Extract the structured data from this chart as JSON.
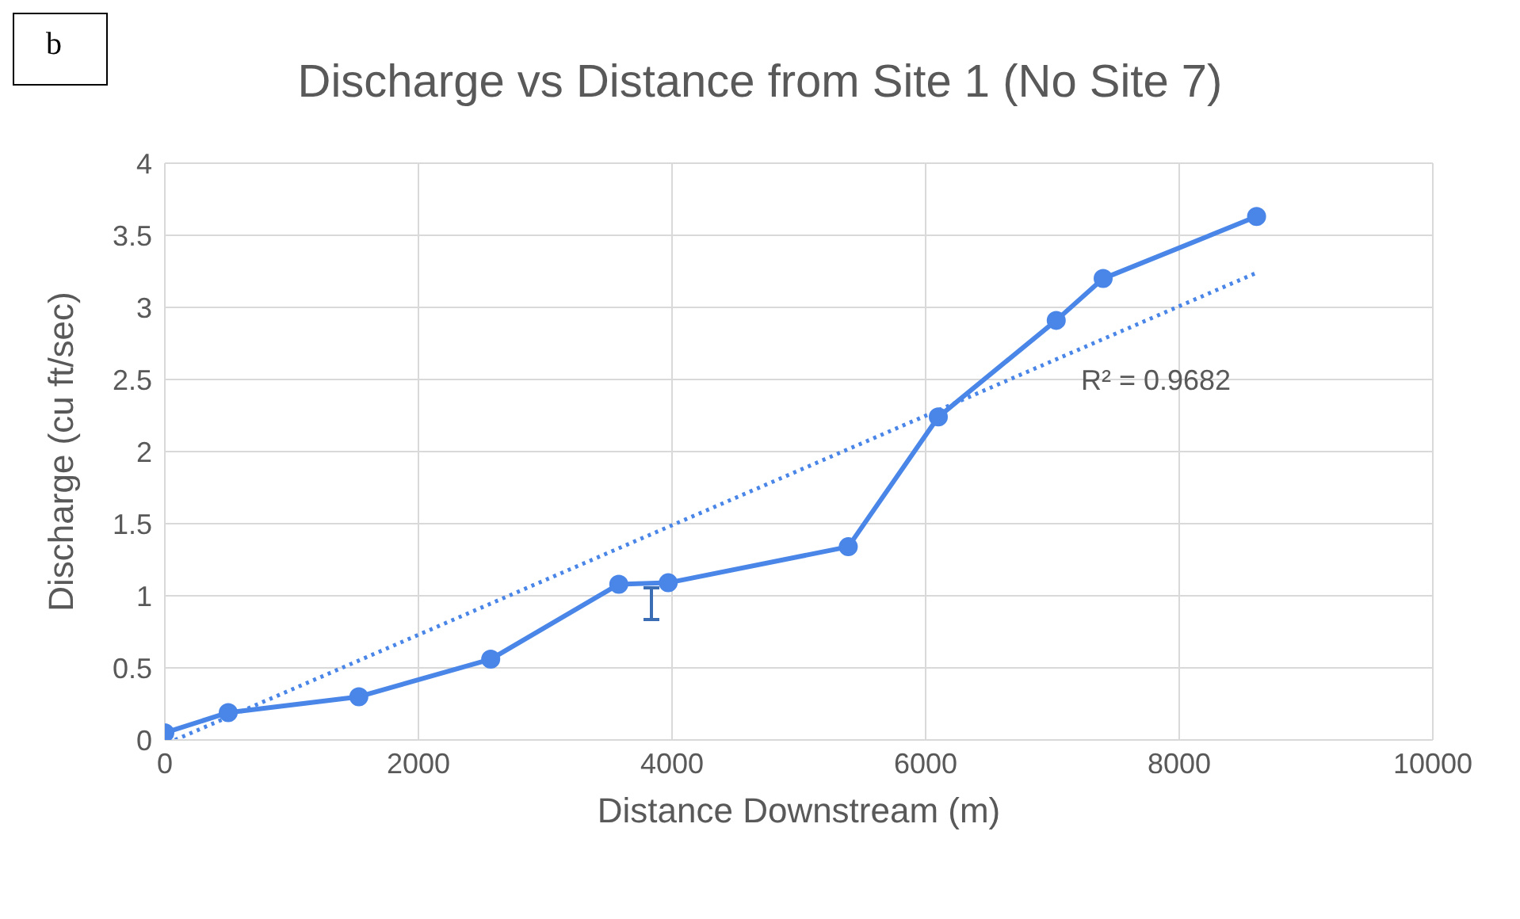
{
  "chart_data": {
    "type": "line",
    "title": "Discharge vs Distance from Site 1 (No Site 7)",
    "xlabel": "Distance Downstream (m)",
    "ylabel": "Discharge (cu ft/sec)",
    "annotations": [
      "b",
      "R² = 0.9682"
    ],
    "xlim": [
      0,
      10000
    ],
    "xticks": [
      0,
      2000,
      4000,
      6000,
      8000,
      10000
    ],
    "ylim": [
      0,
      4
    ],
    "yticks": [
      0,
      0.5,
      1,
      1.5,
      2,
      2.5,
      3,
      3.5,
      4
    ],
    "grid": true,
    "marker": "circle",
    "line_style": "solid",
    "series": [
      {
        "type": "line",
        "color": "#4a86e8",
        "x": [
          0,
          500,
          1530,
          2570,
          3580,
          3970,
          5390,
          6100,
          7030,
          7400,
          8610
        ],
        "values": [
          0.05,
          0.19,
          0.3,
          0.56,
          1.08,
          1.09,
          1.34,
          2.24,
          2.91,
          3.2,
          3.63
        ]
      },
      {
        "type": "line",
        "color": "#4a86e8",
        "line_style": "dotted",
        "marker": "none",
        "x": [
          80,
          8610
        ],
        "values": [
          0,
          3.24
        ]
      }
    ]
  }
}
